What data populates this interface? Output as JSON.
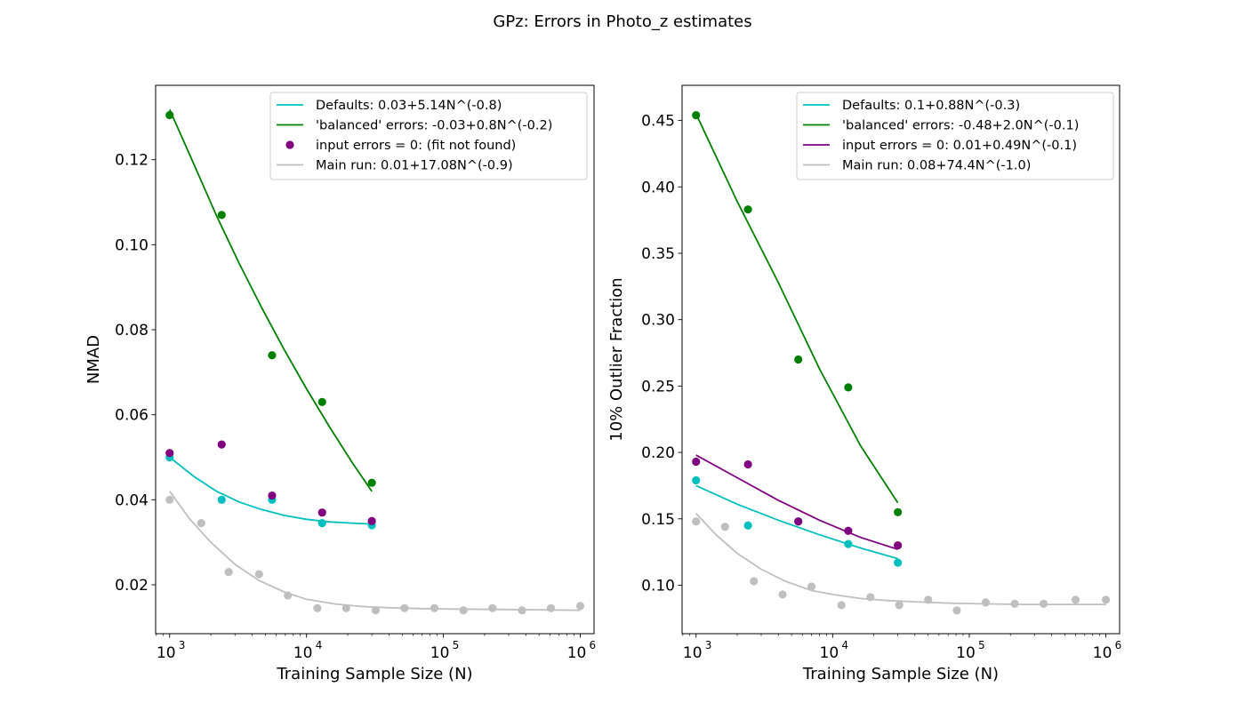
{
  "figure_title": "GPz: Errors in Photo_z estimates",
  "colors": {
    "defaults": "#00bfbf",
    "balanced": "#008000",
    "input_zero": "#800080",
    "main_run": "#bfbfbf"
  },
  "chart_data": [
    {
      "type": "scatter",
      "xlabel": "Training Sample Size (N)",
      "ylabel": "NMAD",
      "xscale": "log",
      "xlim": [
        790,
        1260000
      ],
      "ylim": [
        0.0085,
        0.1375
      ],
      "x_ticks": [
        1000,
        10000,
        100000,
        1000000
      ],
      "y_ticks": [
        0.02,
        0.04,
        0.06,
        0.08,
        0.1,
        0.12
      ],
      "y_tick_labels": [
        "0.02",
        "0.04",
        "0.06",
        "0.08",
        "0.10",
        "0.12"
      ],
      "legend_position": "top-right",
      "series": [
        {
          "key": "defaults",
          "name": "Defaults: 0.03+5.14N^(-0.8)",
          "legend_marker": "line",
          "points": {
            "x": [
              1000,
              2400,
              5600,
              13000,
              30000
            ],
            "y": [
              0.05,
              0.04,
              0.04,
              0.0345,
              0.034
            ]
          },
          "fit": {
            "x": [
              1000,
              1500,
              2200,
              3200,
              4700,
              6900,
              10000,
              14700,
              21500,
              30000
            ],
            "y": [
              0.05,
              0.0455,
              0.042,
              0.0395,
              0.0377,
              0.0363,
              0.0354,
              0.0348,
              0.0345,
              0.0343
            ]
          }
        },
        {
          "key": "balanced",
          "name": "'balanced' errors: -0.03+0.8N^(-0.2)",
          "legend_marker": "line",
          "points": {
            "x": [
              1000,
              2400,
              5600,
              13000,
              30000
            ],
            "y": [
              0.1305,
              0.107,
              0.074,
              0.063,
              0.044
            ]
          },
          "fit": {
            "x": [
              1000,
              1500,
              2200,
              3200,
              4700,
              6900,
              10000,
              14700,
              21500,
              30000
            ],
            "y": [
              0.1318,
              0.119,
              0.1068,
              0.0958,
              0.0852,
              0.0752,
              0.0661,
              0.0572,
              0.0488,
              0.042
            ]
          }
        },
        {
          "key": "input_zero",
          "name": "input errors = 0: (fit not found)",
          "legend_marker": "dot",
          "points": {
            "x": [
              1000,
              2400,
              5600,
              13000,
              30000
            ],
            "y": [
              0.051,
              0.053,
              0.041,
              0.037,
              0.035
            ]
          }
        },
        {
          "key": "main_run",
          "name": "Main run: 0.01+17.08N^(-0.9)",
          "legend_marker": "line",
          "points": {
            "x": [
              1000,
              1700,
              2700,
              4500,
              7300,
              12000,
              19500,
              32000,
              52000,
              86000,
              140000,
              228000,
              375000,
              610000,
              1000000
            ],
            "y": [
              0.04,
              0.0345,
              0.023,
              0.0225,
              0.0175,
              0.0145,
              0.0145,
              0.014,
              0.0145,
              0.0145,
              0.014,
              0.0145,
              0.014,
              0.0145,
              0.015
            ]
          },
          "fit": {
            "x": [
              1000,
              1400,
              2000,
              3000,
              4500,
              7000,
              10000,
              16000,
              25000,
              40000,
              70000,
              120000,
              250000,
              500000,
              1000000
            ],
            "y": [
              0.042,
              0.0355,
              0.03,
              0.0248,
              0.021,
              0.0182,
              0.0166,
              0.0155,
              0.0149,
              0.0146,
              0.0144,
              0.0143,
              0.0142,
              0.0141,
              0.014
            ]
          }
        }
      ]
    },
    {
      "type": "scatter",
      "xlabel": "Training Sample Size (N)",
      "ylabel": "10% Outlier Fraction",
      "xscale": "log",
      "xlim": [
        790,
        1260000
      ],
      "ylim": [
        0.0635,
        0.4765
      ],
      "x_ticks": [
        1000,
        10000,
        100000,
        1000000
      ],
      "y_ticks": [
        0.1,
        0.15,
        0.2,
        0.25,
        0.3,
        0.35,
        0.4,
        0.45
      ],
      "y_tick_labels": [
        "0.10",
        "0.15",
        "0.20",
        "0.25",
        "0.30",
        "0.35",
        "0.40",
        "0.45"
      ],
      "legend_position": "top-right",
      "series": [
        {
          "key": "defaults",
          "name": "Defaults: 0.1+0.88N^(-0.3)",
          "legend_marker": "line",
          "points": {
            "x": [
              1000,
              2400,
              5600,
              13000,
              30000
            ],
            "y": [
              0.179,
              0.145,
              0.148,
              0.131,
              0.117
            ]
          },
          "fit": {
            "x": [
              1000,
              2000,
              4000,
              8000,
              16000,
              30000
            ],
            "y": [
              0.175,
              0.161,
              0.149,
              0.138,
              0.128,
              0.12
            ]
          }
        },
        {
          "key": "balanced",
          "name": "'balanced' errors: -0.48+2.0N^(-0.1)",
          "legend_marker": "line",
          "points": {
            "x": [
              1000,
              2400,
              5600,
              13000,
              30000
            ],
            "y": [
              0.454,
              0.383,
              0.27,
              0.249,
              0.155
            ]
          },
          "fit": {
            "x": [
              1000,
              2000,
              4000,
              8000,
              16000,
              30000
            ],
            "y": [
              0.455,
              0.389,
              0.328,
              0.263,
              0.205,
              0.162
            ]
          }
        },
        {
          "key": "input_zero",
          "name": "input errors = 0: 0.01+0.49N^(-0.1)",
          "legend_marker": "line",
          "points": {
            "x": [
              1000,
              2400,
              5600,
              13000,
              30000
            ],
            "y": [
              0.193,
              0.191,
              0.148,
              0.141,
              0.13
            ]
          },
          "fit": {
            "x": [
              1000,
              2000,
              4000,
              8000,
              16000,
              30000
            ],
            "y": [
              0.198,
              0.181,
              0.164,
              0.149,
              0.136,
              0.127
            ]
          }
        },
        {
          "key": "main_run",
          "name": "Main run: 0.08+74.4N^(-1.0)",
          "legend_marker": "line",
          "points": {
            "x": [
              1000,
              1630,
              2650,
              4300,
              7000,
              11600,
              18900,
              30700,
              50000,
              81000,
              132000,
              215000,
              350000,
              600000,
              1000000
            ],
            "y": [
              0.148,
              0.144,
              0.103,
              0.093,
              0.099,
              0.085,
              0.091,
              0.085,
              0.089,
              0.081,
              0.087,
              0.086,
              0.086,
              0.089,
              0.089
            ]
          },
          "fit": {
            "x": [
              1000,
              1400,
              2000,
              3000,
              4500,
              7000,
              10000,
              16000,
              25000,
              40000,
              70000,
              120000,
              250000,
              500000,
              1000000
            ],
            "y": [
              0.154,
              0.138,
              0.124,
              0.112,
              0.103,
              0.096,
              0.093,
              0.09,
              0.0885,
              0.0875,
              0.0865,
              0.086,
              0.0855,
              0.0855,
              0.0855
            ]
          }
        }
      ]
    }
  ]
}
